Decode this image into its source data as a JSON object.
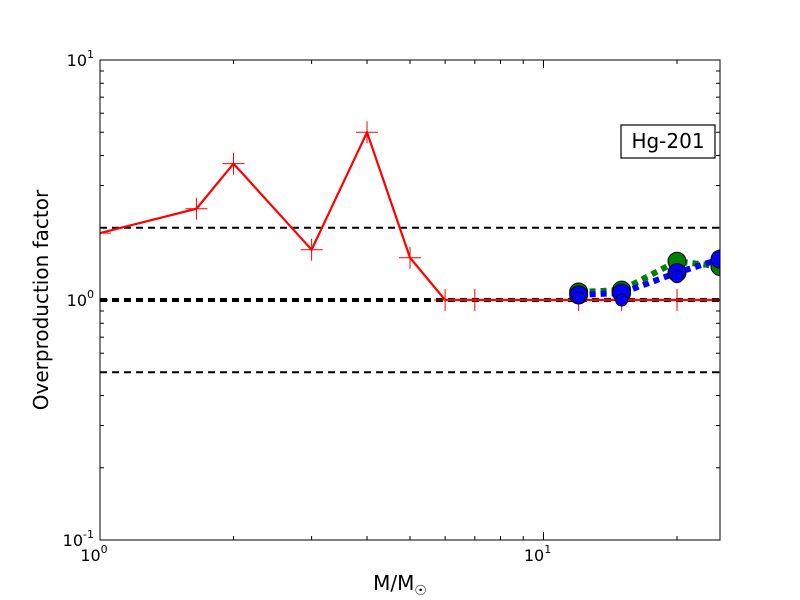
{
  "chart_data": {
    "type": "line",
    "xscale": "log",
    "yscale": "log",
    "xlim": [
      1,
      25
    ],
    "ylim": [
      0.1,
      10
    ],
    "xlabel_main": "M/M",
    "xlabel_sub": "☉",
    "ylabel": "Overproduction factor",
    "annotation": "Hg-201",
    "x_ticks": [
      {
        "value": 1,
        "base": "10",
        "exp": "0"
      },
      {
        "value": 10,
        "base": "10",
        "exp": "1"
      }
    ],
    "y_ticks": [
      {
        "value": 0.1,
        "base": "10",
        "exp": "-1"
      },
      {
        "value": 1,
        "base": "10",
        "exp": "0"
      },
      {
        "value": 10,
        "base": "10",
        "exp": "1"
      }
    ],
    "reference_lines": [
      {
        "y": 2.0,
        "style": "dashed",
        "width": 2
      },
      {
        "y": 1.0,
        "style": "dashed",
        "width": 4
      },
      {
        "y": 0.5,
        "style": "dashed",
        "width": 2
      }
    ],
    "series": [
      {
        "type": "line",
        "color": "#ff0000",
        "marker": "plus",
        "x": [
          1.0,
          1.65,
          2.0,
          3.0,
          4.0,
          5.0,
          6.0,
          7.0,
          12.0,
          15.0,
          20.0,
          25.0
        ],
        "y": [
          1.9,
          2.4,
          3.7,
          1.62,
          5.0,
          1.5,
          1.0,
          1.0,
          1.0,
          1.0,
          1.0,
          1.0
        ]
      },
      {
        "type": "line",
        "color": "#008000",
        "marker": "circle",
        "line_style": "dotted",
        "x": [
          12.0,
          15.0,
          20.0,
          25.0
        ],
        "y": [
          1.08,
          1.1,
          1.45,
          1.38
        ]
      },
      {
        "type": "line",
        "color": "#0000ff",
        "marker": "circle",
        "line_style": "dotted",
        "x": [
          12.0,
          15.0,
          20.0,
          25.0
        ],
        "y": [
          1.05,
          1.07,
          1.3,
          1.48
        ]
      },
      {
        "type": "scatter",
        "color": "#0000ff",
        "marker": "circle",
        "x": [
          12.0,
          15.0,
          20.0
        ],
        "y": [
          1.02,
          1.0,
          1.25
        ]
      }
    ]
  }
}
